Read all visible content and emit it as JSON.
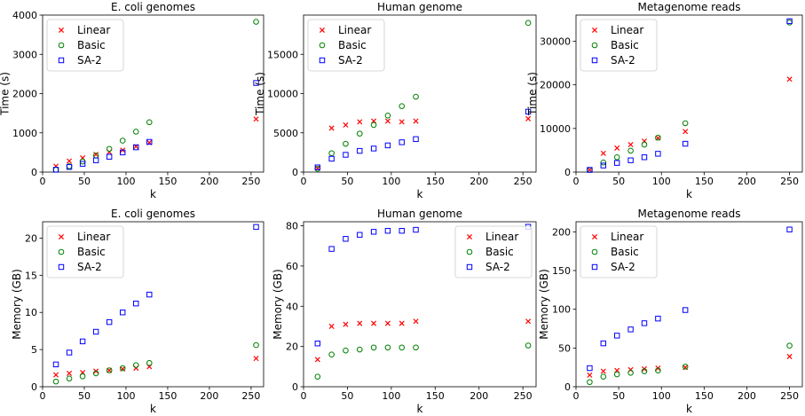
{
  "legend_entries": [
    "Linear",
    "Basic",
    "SA-2"
  ],
  "colors": {
    "Linear": "#ff0000",
    "Basic": "#008000",
    "SA-2": "#0000ff"
  },
  "markers": {
    "Linear": "x",
    "Basic": "circle",
    "SA-2": "square"
  },
  "chart_data": [
    {
      "type": "scatter",
      "title": "E. coli genomes",
      "xlabel": "k",
      "ylabel": "Time (s)",
      "xlim": [
        0,
        265
      ],
      "ylim": [
        0,
        4000
      ],
      "xticks": [
        0,
        50,
        100,
        150,
        200,
        250
      ],
      "yticks": [
        0,
        1000,
        2000,
        3000,
        4000
      ],
      "legend": "top-left",
      "series": [
        {
          "name": "Linear",
          "x": [
            16,
            32,
            48,
            64,
            80,
            96,
            112,
            128,
            256
          ],
          "y": [
            150,
            280,
            360,
            450,
            510,
            560,
            650,
            750,
            1350
          ]
        },
        {
          "name": "Basic",
          "x": [
            16,
            32,
            48,
            64,
            80,
            96,
            112,
            128,
            256
          ],
          "y": [
            60,
            150,
            270,
            420,
            590,
            800,
            1030,
            1270,
            3830
          ]
        },
        {
          "name": "SA-2",
          "x": [
            16,
            32,
            48,
            64,
            80,
            96,
            112,
            128,
            256
          ],
          "y": [
            60,
            130,
            210,
            300,
            390,
            500,
            630,
            770,
            2270
          ]
        }
      ]
    },
    {
      "type": "scatter",
      "title": "Human genome",
      "xlabel": "k",
      "ylabel": "Time (s)",
      "xlim": [
        0,
        265
      ],
      "ylim": [
        0,
        20000
      ],
      "xticks": [
        0,
        50,
        100,
        150,
        200,
        250
      ],
      "yticks": [
        0,
        5000,
        10000,
        15000
      ],
      "legend": "top-left",
      "series": [
        {
          "name": "Linear",
          "x": [
            16,
            32,
            48,
            64,
            80,
            96,
            112,
            128,
            256
          ],
          "y": [
            500,
            5600,
            6000,
            6400,
            6500,
            6500,
            6400,
            6500,
            6800
          ]
        },
        {
          "name": "Basic",
          "x": [
            16,
            32,
            48,
            64,
            80,
            96,
            112,
            128,
            256
          ],
          "y": [
            400,
            2400,
            3600,
            4900,
            6000,
            7200,
            8400,
            9600,
            19000
          ]
        },
        {
          "name": "SA-2",
          "x": [
            16,
            32,
            48,
            64,
            80,
            96,
            112,
            128,
            256
          ],
          "y": [
            600,
            1700,
            2200,
            2700,
            3000,
            3400,
            3800,
            4200,
            7700
          ]
        }
      ]
    },
    {
      "type": "scatter",
      "title": "Metagenome reads",
      "xlabel": "k",
      "ylabel": "Time (s)",
      "xlim": [
        0,
        265
      ],
      "ylim": [
        0,
        36000
      ],
      "xticks": [
        0,
        50,
        100,
        150,
        200,
        250
      ],
      "yticks": [
        0,
        10000,
        20000,
        30000
      ],
      "legend": "top-left",
      "series": [
        {
          "name": "Linear",
          "x": [
            16,
            32,
            48,
            64,
            80,
            96,
            128,
            250
          ],
          "y": [
            500,
            4300,
            5500,
            6300,
            7100,
            7800,
            9300,
            21300
          ]
        },
        {
          "name": "Basic",
          "x": [
            16,
            32,
            48,
            64,
            80,
            96,
            128,
            250
          ],
          "y": [
            500,
            2200,
            3400,
            4900,
            6300,
            7900,
            11200,
            34300
          ]
        },
        {
          "name": "SA-2",
          "x": [
            16,
            32,
            48,
            64,
            80,
            96,
            128,
            250
          ],
          "y": [
            500,
            1500,
            2100,
            2700,
            3400,
            4200,
            6500,
            34600
          ]
        }
      ]
    },
    {
      "type": "scatter",
      "title": "E. coli genomes",
      "xlabel": "k",
      "ylabel": "Memory (GB)",
      "xlim": [
        0,
        265
      ],
      "ylim": [
        0,
        22.2
      ],
      "xticks": [
        0,
        50,
        100,
        150,
        200,
        250
      ],
      "yticks": [
        0,
        5,
        10,
        15,
        20
      ],
      "legend": "top-left",
      "series": [
        {
          "name": "Linear",
          "x": [
            16,
            32,
            48,
            64,
            80,
            96,
            112,
            128,
            256
          ],
          "y": [
            1.6,
            1.8,
            1.9,
            2.1,
            2.2,
            2.4,
            2.5,
            2.7,
            3.8
          ]
        },
        {
          "name": "Basic",
          "x": [
            16,
            32,
            48,
            64,
            80,
            96,
            112,
            128,
            256
          ],
          "y": [
            0.7,
            1.1,
            1.4,
            1.8,
            2.2,
            2.5,
            2.9,
            3.2,
            5.6
          ]
        },
        {
          "name": "SA-2",
          "x": [
            16,
            32,
            48,
            64,
            80,
            96,
            112,
            128,
            256
          ],
          "y": [
            3.0,
            4.6,
            6.1,
            7.4,
            8.7,
            10.0,
            11.2,
            12.4,
            21.5
          ]
        }
      ]
    },
    {
      "type": "scatter",
      "title": "Human genome",
      "xlabel": "k",
      "ylabel": "Memory (GB)",
      "xlim": [
        0,
        265
      ],
      "ylim": [
        0,
        82
      ],
      "xticks": [
        0,
        50,
        100,
        150,
        200,
        250
      ],
      "yticks": [
        0,
        20,
        40,
        60,
        80
      ],
      "legend": "top-right",
      "series": [
        {
          "name": "Linear",
          "x": [
            16,
            32,
            48,
            64,
            80,
            96,
            112,
            128,
            256
          ],
          "y": [
            13.5,
            30,
            31,
            31.5,
            31.5,
            31.5,
            31.5,
            32.5,
            32.5
          ]
        },
        {
          "name": "Basic",
          "x": [
            16,
            32,
            48,
            64,
            80,
            96,
            112,
            128,
            256
          ],
          "y": [
            5,
            16,
            18,
            18.5,
            19.5,
            19.5,
            19.5,
            19.5,
            20.5
          ]
        },
        {
          "name": "SA-2",
          "x": [
            16,
            32,
            48,
            64,
            80,
            96,
            112,
            128,
            256
          ],
          "y": [
            21.5,
            68.5,
            73.5,
            75.5,
            77,
            77.5,
            77.5,
            78,
            79.5
          ]
        }
      ]
    },
    {
      "type": "scatter",
      "title": "Metagenome reads",
      "xlabel": "k",
      "ylabel": "Memory (GB)",
      "xlim": [
        0,
        265
      ],
      "ylim": [
        0,
        213
      ],
      "xticks": [
        0,
        50,
        100,
        150,
        200,
        250
      ],
      "yticks": [
        0,
        50,
        100,
        150,
        200
      ],
      "legend": "top-left",
      "series": [
        {
          "name": "Linear",
          "x": [
            16,
            32,
            48,
            64,
            80,
            96,
            128,
            250
          ],
          "y": [
            15,
            20,
            21,
            22,
            23,
            24,
            25,
            39
          ]
        },
        {
          "name": "Basic",
          "x": [
            16,
            32,
            48,
            64,
            80,
            96,
            128,
            250
          ],
          "y": [
            6,
            13,
            16,
            18,
            20,
            21,
            26,
            53
          ]
        },
        {
          "name": "SA-2",
          "x": [
            16,
            32,
            48,
            64,
            80,
            96,
            128,
            250
          ],
          "y": [
            24,
            56,
            66,
            74,
            82,
            88,
            99,
            203
          ]
        }
      ]
    }
  ]
}
